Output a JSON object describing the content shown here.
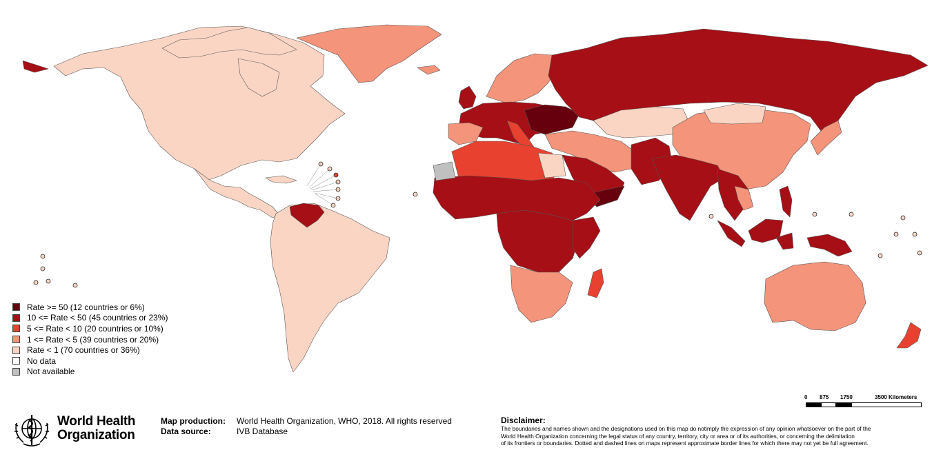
{
  "legend": {
    "items": [
      {
        "label": "Rate >= 50 (12 countries or 6%)",
        "color": "#67000d"
      },
      {
        "label": "10 <= Rate < 50 (45 countries or 23%)",
        "color": "#a50f15"
      },
      {
        "label": "5 <= Rate < 10 (20 countries or 10%)",
        "color": "#e8412f"
      },
      {
        "label": "1 <= Rate < 5 (39 countries or 20%)",
        "color": "#f4947a"
      },
      {
        "label": "Rate < 1 (70 countries or 36%)",
        "color": "#fbd5c4"
      },
      {
        "label": "No data",
        "color": "#ffffff"
      },
      {
        "label": "Not available",
        "color": "#c0c0c0"
      }
    ]
  },
  "scale": {
    "ticks": [
      "0",
      "875",
      "1750",
      "3500 Kilometers"
    ]
  },
  "org": {
    "name_line1": "World Health",
    "name_line2": "Organization"
  },
  "credits": {
    "production_key": "Map production:",
    "production_value": "World Health Organization, WHO, 2018. All rights reserved",
    "source_key": "Data source:",
    "source_value": "IVB Database"
  },
  "disclaimer": {
    "title": "Disclaimer:",
    "line1": "The boundaries and names shown and the designations used on this map do notimply the expression of any opinion whatsoever on the part of the",
    "line2": "World Health Organization concerning the legal status of any country, territory, city or area or of its authorities, or concerning the delimitation",
    "line3": "of its frontiers or boundaries. Dotted and dashed lines on maps represent approximate border lines for which there may not yet be full agreement."
  }
}
